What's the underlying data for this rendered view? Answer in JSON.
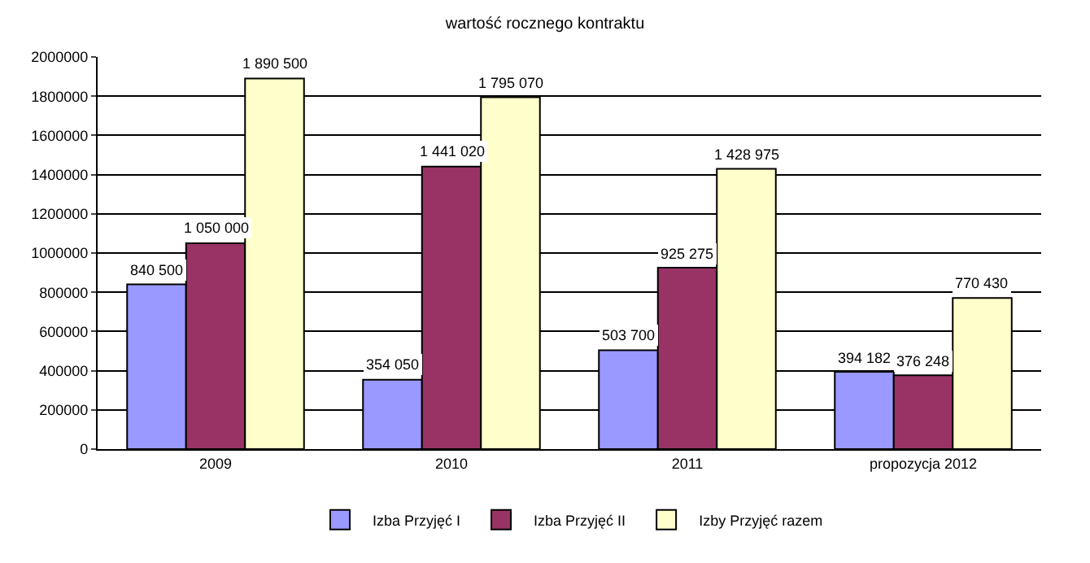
{
  "chart_data": {
    "type": "bar",
    "title": "wartość rocznego kontraktu",
    "categories": [
      "2009",
      "2010",
      "2011",
      "propozycja 2012"
    ],
    "series": [
      {
        "name": "Izba Przyjęć I",
        "color": "#9999ff",
        "values": [
          840500,
          354050,
          503700,
          394182
        ],
        "value_labels": [
          "840 500",
          "354 050",
          "503 700",
          "394 182"
        ]
      },
      {
        "name": "Izba Przyjęć II",
        "color": "#993366",
        "values": [
          1050000,
          1441020,
          925275,
          376248
        ],
        "value_labels": [
          "1 050 000",
          "1 441 020",
          "925 275",
          "376 248"
        ]
      },
      {
        "name": "Izby Przyjęć razem",
        "color": "#ffffcc",
        "values": [
          1890500,
          1795070,
          1428975,
          770430
        ],
        "value_labels": [
          "1 890 500",
          "1 795 070",
          "1 428 975",
          "770 430"
        ]
      }
    ],
    "ylim": [
      0,
      2000000
    ],
    "yticks": [
      0,
      200000,
      400000,
      600000,
      800000,
      1000000,
      1200000,
      1400000,
      1600000,
      1800000,
      2000000
    ],
    "grid": "y",
    "legend": "bottom"
  }
}
